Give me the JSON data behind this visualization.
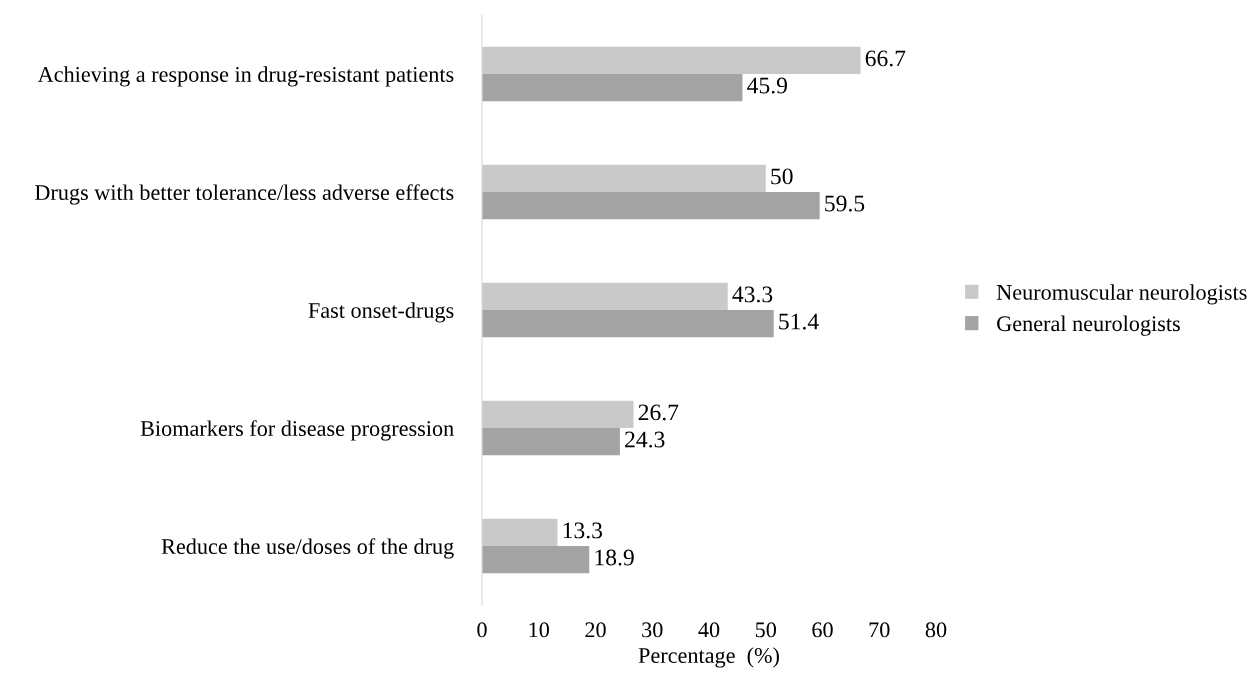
{
  "chart_data": {
    "type": "bar",
    "orientation": "horizontal",
    "xlabel": "Percentage  (%)",
    "categories": [
      "Achieving a response in drug-resistant patients",
      "Drugs with better tolerance/less adverse effects",
      "Fast onset-drugs",
      "Biomarkers for disease progression",
      "Reduce the use/doses of the drug"
    ],
    "series": [
      {
        "name": "Neuromuscular neurologists",
        "color": "#c9c9c9",
        "values": [
          66.7,
          50,
          43.3,
          26.7,
          13.3
        ]
      },
      {
        "name": "General neurologists",
        "color": "#a3a3a3",
        "values": [
          45.9,
          59.5,
          51.4,
          24.3,
          18.9
        ]
      }
    ],
    "xlim": [
      0,
      80
    ],
    "xticks": [
      0,
      10,
      20,
      30,
      40,
      50,
      60,
      70,
      80
    ],
    "data_labels": true,
    "grid": false,
    "legend": "right"
  }
}
